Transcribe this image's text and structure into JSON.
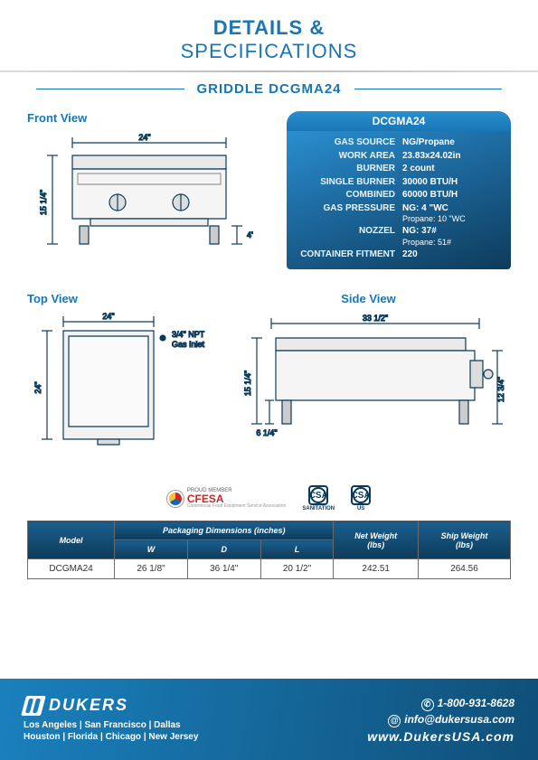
{
  "header": {
    "line1": "DETAILS &",
    "line2": "SPECIFICATIONS",
    "subtitle": "GRIDDLE DCGMA24"
  },
  "views": {
    "front_label": "Front View",
    "top_label": "Top View",
    "side_label": "Side View",
    "front": {
      "width": "24\"",
      "height": "15 1/4\"",
      "leg": "4\""
    },
    "top": {
      "width": "24\"",
      "depth": "24\"",
      "note1": "3/4\" NPT",
      "note2": "Gas Inlet"
    },
    "side": {
      "length": "33 1/2\"",
      "height": "15 1/4\"",
      "leg": "6 1/4\"",
      "body": "12 3/4\""
    }
  },
  "spec": {
    "model": "DCGMA24",
    "rows": [
      {
        "k": "GAS SOURCE",
        "v": "NG/Propane"
      },
      {
        "k": "WORK AREA",
        "v": "23.83x24.02in"
      },
      {
        "k": "BURNER",
        "v": "2 count"
      },
      {
        "k": "SINGLE BURNER",
        "v": "30000 BTU/H"
      },
      {
        "k": "COMBINED",
        "v": "60000 BTU/H"
      },
      {
        "k": "GAS PRESSURE",
        "v": "NG: 4 \"WC",
        "v2": "Propane: 10 \"WC"
      },
      {
        "k": "NOZZEL",
        "v": "NG: 37#",
        "v2": "Propane: 51#"
      },
      {
        "k": "CONTAINER FITMENT",
        "v": "220"
      }
    ]
  },
  "logos": {
    "cfesa_top": "PROUD MEMBER",
    "cfesa": "CFESA",
    "cfesa_sub": "Commercial Food Equipment Service Association",
    "csa_sanitation": "SANITATION",
    "csa_us": "US",
    "csa_text": "CSA"
  },
  "table": {
    "headers": {
      "model": "Model",
      "pack": "Packaging Dimensions (inches)",
      "w": "W",
      "d": "D",
      "l": "L",
      "net": "Net Weight\n(lbs)",
      "ship": "Ship Weight\n(lbs)"
    },
    "row": {
      "model": "DCGMA24",
      "w": "26 1/8\"",
      "d": "36 1/4\"",
      "l": "20 1/2\"",
      "net": "242.51",
      "ship": "264.56"
    }
  },
  "footer": {
    "brand": "DUKERS",
    "locations1": "Los Angeles | San Francisco | Dallas",
    "locations2": "Houston | Florida | Chicago | New Jersey",
    "phone": "1-800-931-8628",
    "email": "info@dukersusa.com",
    "web": "www.DukersUSA.com"
  },
  "colors": {
    "brand_blue": "#1976b5",
    "dark_blue": "#0d3b5a"
  }
}
